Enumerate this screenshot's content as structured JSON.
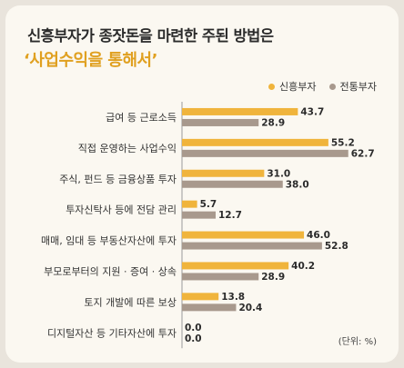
{
  "title": "신흥부자가 종잣돈을 마련한 주된 방법은",
  "subtitle": "‘사업수익을 통해서’",
  "unit": "(단위: %)",
  "colors": {
    "new_rich": "#f0b43c",
    "old_rich": "#a8998d",
    "background": "#fbf8f1"
  },
  "chart_data": {
    "type": "bar",
    "orientation": "horizontal",
    "xlim": [
      0,
      70
    ],
    "categories": [
      "급여 등 근로소득",
      "직접 운영하는 사업수익",
      "주식, 펀드 등 금융상품 투자",
      "투자신탁사 등에 전담 관리",
      "매매, 임대 등 부동산자산에 투자",
      "부모로부터의 지원 · 증여 · 상속",
      "토지 개발에 따른 보상",
      "디지털자산 등 기타자산에 투자"
    ],
    "series": [
      {
        "name": "신흥부자",
        "values": [
          43.7,
          55.2,
          31.0,
          5.7,
          46.0,
          40.2,
          13.8,
          0.0
        ]
      },
      {
        "name": "전통부자",
        "values": [
          28.9,
          62.7,
          38.0,
          12.7,
          52.8,
          28.9,
          20.4,
          0.0
        ]
      }
    ],
    "legend_position": "top-right",
    "grid": false
  }
}
